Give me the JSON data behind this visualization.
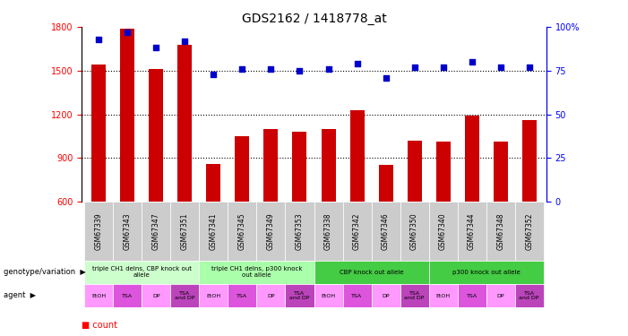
{
  "title": "GDS2162 / 1418778_at",
  "samples": [
    "GSM67339",
    "GSM67343",
    "GSM67347",
    "GSM67351",
    "GSM67341",
    "GSM67345",
    "GSM67349",
    "GSM67353",
    "GSM67338",
    "GSM67342",
    "GSM67346",
    "GSM67350",
    "GSM67340",
    "GSM67344",
    "GSM67348",
    "GSM67352"
  ],
  "counts": [
    1540,
    1790,
    1510,
    1680,
    860,
    1050,
    1100,
    1080,
    1100,
    1230,
    855,
    1020,
    1010,
    1190,
    1010,
    1160
  ],
  "percentiles": [
    93,
    97,
    88,
    92,
    73,
    76,
    76,
    75,
    76,
    79,
    71,
    77,
    77,
    80,
    77,
    77
  ],
  "bar_color": "#cc0000",
  "dot_color": "#0000cc",
  "ylim_left": [
    600,
    1800
  ],
  "ylim_right": [
    0,
    100
  ],
  "yticks_left": [
    600,
    900,
    1200,
    1500,
    1800
  ],
  "yticks_right": [
    0,
    25,
    50,
    75,
    100
  ],
  "geno_groups": [
    {
      "label": "triple CH1 delns, CBP knock out\nallele",
      "start": 0,
      "end": 4,
      "color": "#ccffcc"
    },
    {
      "label": "triple CH1 delns, p300 knock\nout allele",
      "start": 4,
      "end": 8,
      "color": "#aaffaa"
    },
    {
      "label": "CBP knock out allele",
      "start": 8,
      "end": 12,
      "color": "#44cc44"
    },
    {
      "label": "p300 knock out allele",
      "start": 12,
      "end": 16,
      "color": "#44cc44"
    }
  ],
  "agent_labels": [
    "EtOH",
    "TSA",
    "DP",
    "TSA\nand DP",
    "EtOH",
    "TSA",
    "DP",
    "TSA\nand DP",
    "EtOH",
    "TSA",
    "DP",
    "TSA\nand DP",
    "EtOH",
    "TSA",
    "DP",
    "TSA\nand DP"
  ],
  "agent_colors": [
    "#ff99ff",
    "#dd55dd",
    "#ff99ff",
    "#bb44bb",
    "#ff99ff",
    "#dd55dd",
    "#ff99ff",
    "#bb44bb",
    "#ff99ff",
    "#dd55dd",
    "#ff99ff",
    "#bb44bb",
    "#ff99ff",
    "#dd55dd",
    "#ff99ff",
    "#bb44bb"
  ]
}
